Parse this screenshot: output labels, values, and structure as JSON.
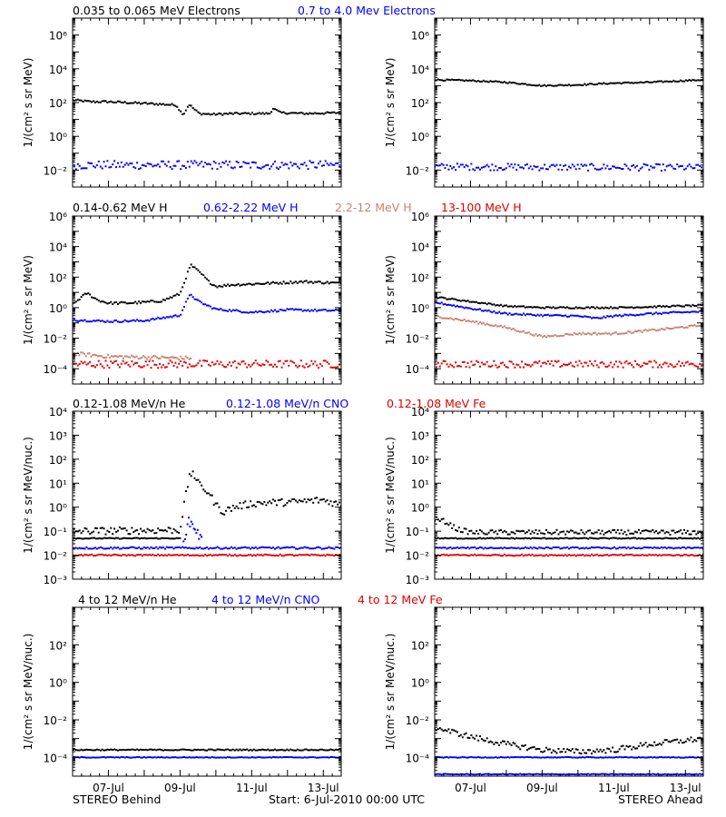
{
  "footer": {
    "left": "STEREO Behind",
    "center": "Start:  6-Jul-2010 00:00 UTC",
    "right": "STEREO Ahead"
  },
  "x_axis": {
    "unit": "day of July 2010",
    "range": [
      6,
      13.5
    ],
    "ticks": [
      7,
      9,
      11,
      13
    ],
    "tick_labels": [
      "07-Jul",
      "09-Jul",
      "11-Jul",
      "13-Jul"
    ]
  },
  "rows": [
    {
      "id": "electrons",
      "titles": [
        {
          "text": "0.035 to 0.065 MeV Electrons",
          "color": "#000000"
        },
        {
          "text": "0.7 to 4.0 Mev Electrons",
          "color": "#0000ff"
        }
      ],
      "ylabel": "1/(cm² s sr MeV)"
    },
    {
      "id": "protons",
      "titles": [
        {
          "text": "0.14-0.62 MeV H",
          "color": "#000000"
        },
        {
          "text": "0.62-2.22 MeV H",
          "color": "#0000ff"
        },
        {
          "text": "2.2-12 MeV H",
          "color": "#c8826e"
        },
        {
          "text": "13-100 MeV H",
          "color": "#e00000"
        }
      ],
      "ylabel": "1/(cm² s sr MeV)"
    },
    {
      "id": "heavy-low",
      "titles": [
        {
          "text": "0.12-1.08 MeV/n He",
          "color": "#000000"
        },
        {
          "text": "0.12-1.08 MeV/n CNO",
          "color": "#0000ff"
        },
        {
          "text": "0.12-1.08 MeV Fe",
          "color": "#e00000"
        }
      ],
      "ylabel": "1/(cm² s sr MeV/nuc.)"
    },
    {
      "id": "heavy-high",
      "titles": [
        {
          "text": "4 to 12 MeV/n He",
          "color": "#000000"
        },
        {
          "text": "4 to 12 MeV/n CNO",
          "color": "#0000ff"
        },
        {
          "text": "4 to 12 MeV Fe",
          "color": "#e00000"
        }
      ],
      "ylabel": "1/(cm² s sr MeV/nuc.)"
    }
  ],
  "chart_data": [
    {
      "type": "scatter",
      "panel": "STEREO Behind / electrons",
      "y_scale": "log",
      "ylim_log10": [
        -3,
        7
      ],
      "y_ticks": [
        {
          "v": -2,
          "l": "10⁻²"
        },
        {
          "v": 0,
          "l": "10⁰"
        },
        {
          "v": 2,
          "l": "10²"
        },
        {
          "v": 4,
          "l": "10⁴"
        },
        {
          "v": 6,
          "l": "10⁶"
        }
      ],
      "series": [
        {
          "color": "#000000",
          "points": [
            [
              6,
              2.15
            ],
            [
              6.5,
              2.05
            ],
            [
              7,
              2.05
            ],
            [
              7.5,
              2.0
            ],
            [
              8,
              1.95
            ],
            [
              8.5,
              1.9
            ],
            [
              8.9,
              1.85
            ],
            [
              9,
              1.5
            ],
            [
              9.1,
              1.3
            ],
            [
              9.2,
              1.7
            ],
            [
              9.25,
              1.9
            ],
            [
              9.35,
              1.7
            ],
            [
              9.45,
              1.5
            ],
            [
              9.55,
              1.35
            ],
            [
              9.9,
              1.3
            ],
            [
              10.5,
              1.35
            ],
            [
              11,
              1.35
            ],
            [
              11.5,
              1.35
            ],
            [
              11.6,
              1.65
            ],
            [
              11.8,
              1.4
            ],
            [
              12.5,
              1.35
            ],
            [
              13.5,
              1.4
            ]
          ],
          "spread": 0.06
        },
        {
          "color": "#0000ff",
          "points": [
            [
              6,
              -1.7
            ],
            [
              13.5,
              -1.7
            ]
          ],
          "spread": 0.25
        }
      ]
    },
    {
      "type": "scatter",
      "panel": "STEREO Ahead / electrons",
      "y_scale": "log",
      "ylim_log10": [
        -3,
        7
      ],
      "y_ticks": [
        {
          "v": -2,
          "l": "10⁻²"
        },
        {
          "v": 0,
          "l": "10⁰"
        },
        {
          "v": 2,
          "l": "10²"
        },
        {
          "v": 4,
          "l": "10⁴"
        },
        {
          "v": 6,
          "l": "10⁶"
        }
      ],
      "series": [
        {
          "color": "#000000",
          "points": [
            [
              6,
              3.35
            ],
            [
              7,
              3.3
            ],
            [
              8,
              3.2
            ],
            [
              9,
              3.0
            ],
            [
              10,
              3.05
            ],
            [
              11,
              3.15
            ],
            [
              12,
              3.2
            ],
            [
              13.5,
              3.35
            ]
          ],
          "spread": 0.04
        },
        {
          "color": "#0000ff",
          "points": [
            [
              6,
              -1.8
            ],
            [
              13.5,
              -1.85
            ]
          ],
          "spread": 0.2
        }
      ]
    },
    {
      "type": "scatter",
      "panel": "STEREO Behind / protons",
      "y_scale": "log",
      "ylim_log10": [
        -5,
        6
      ],
      "y_ticks": [
        {
          "v": -4,
          "l": "10⁻⁴"
        },
        {
          "v": -2,
          "l": "10⁻²"
        },
        {
          "v": 0,
          "l": "10⁰"
        },
        {
          "v": 2,
          "l": "10²"
        },
        {
          "v": 4,
          "l": "10⁴"
        },
        {
          "v": 6,
          "l": "10⁶"
        }
      ],
      "series": [
        {
          "color": "#000000",
          "points": [
            [
              6,
              0.2
            ],
            [
              6.2,
              0.6
            ],
            [
              6.4,
              0.95
            ],
            [
              6.7,
              0.5
            ],
            [
              7,
              0.3
            ],
            [
              7.5,
              0.3
            ],
            [
              8,
              0.35
            ],
            [
              8.5,
              0.45
            ],
            [
              9,
              0.9
            ],
            [
              9.2,
              2.2
            ],
            [
              9.3,
              2.8
            ],
            [
              9.4,
              2.6
            ],
            [
              9.5,
              2.4
            ],
            [
              9.6,
              2.2
            ],
            [
              9.8,
              1.7
            ],
            [
              10,
              1.4
            ],
            [
              10.5,
              1.5
            ],
            [
              11,
              1.55
            ],
            [
              11.5,
              1.6
            ],
            [
              12,
              1.65
            ],
            [
              12.5,
              1.7
            ],
            [
              13.5,
              1.6
            ]
          ],
          "spread": 0.08
        },
        {
          "color": "#0000ff",
          "points": [
            [
              6,
              -0.8
            ],
            [
              7,
              -0.9
            ],
            [
              8,
              -0.85
            ],
            [
              9,
              -0.5
            ],
            [
              9.2,
              0.5
            ],
            [
              9.3,
              0.9
            ],
            [
              9.45,
              0.5
            ],
            [
              9.7,
              0.2
            ],
            [
              10,
              -0.1
            ],
            [
              11,
              -0.3
            ],
            [
              12,
              -0.15
            ],
            [
              13.5,
              -0.2
            ]
          ],
          "spread": 0.07
        },
        {
          "color": "#c8826e",
          "points": [
            [
              6,
              -3.0
            ],
            [
              7,
              -3.2
            ],
            [
              9,
              -3.3
            ],
            [
              9.3,
              -3.3
            ]
          ],
          "spread": 0.12
        },
        {
          "color": "#e00000",
          "points": [
            [
              6,
              -3.7
            ],
            [
              13.5,
              -3.7
            ]
          ],
          "spread": 0.25
        }
      ]
    },
    {
      "type": "scatter",
      "panel": "STEREO Ahead / protons",
      "y_scale": "log",
      "ylim_log10": [
        -5,
        6
      ],
      "y_ticks": [
        {
          "v": -4,
          "l": "10⁻⁴"
        },
        {
          "v": -2,
          "l": "10⁻²"
        },
        {
          "v": 0,
          "l": "10⁰"
        },
        {
          "v": 2,
          "l": "10²"
        },
        {
          "v": 4,
          "l": "10⁴"
        },
        {
          "v": 6,
          "l": "10⁶"
        }
      ],
      "series": [
        {
          "color": "#000000",
          "points": [
            [
              6,
              0.7
            ],
            [
              7,
              0.4
            ],
            [
              8,
              0.1
            ],
            [
              9,
              0.0
            ],
            [
              10,
              0.0
            ],
            [
              11,
              0.0
            ],
            [
              12,
              0.05
            ],
            [
              13.5,
              0.15
            ]
          ],
          "spread": 0.05
        },
        {
          "color": "#0000ff",
          "points": [
            [
              6,
              0.35
            ],
            [
              7,
              -0.05
            ],
            [
              8,
              -0.4
            ],
            [
              9,
              -0.5
            ],
            [
              10,
              -0.55
            ],
            [
              10.5,
              -0.7
            ],
            [
              11,
              -0.55
            ],
            [
              12,
              -0.4
            ],
            [
              13.5,
              -0.25
            ]
          ],
          "spread": 0.06
        },
        {
          "color": "#c8826e",
          "points": [
            [
              6,
              -0.55
            ],
            [
              7,
              -0.9
            ],
            [
              8,
              -1.3
            ],
            [
              8.5,
              -1.6
            ],
            [
              9,
              -1.9
            ],
            [
              10,
              -1.7
            ],
            [
              11,
              -1.7
            ],
            [
              12,
              -1.5
            ],
            [
              13.5,
              -1.15
            ]
          ],
          "spread": 0.07
        },
        {
          "color": "#e00000",
          "points": [
            [
              6,
              -3.7
            ],
            [
              13.5,
              -3.7
            ]
          ],
          "spread": 0.22
        }
      ]
    },
    {
      "type": "scatter",
      "panel": "STEREO Behind / heavy ions 0.12-1.08",
      "y_scale": "log",
      "ylim_log10": [
        -3,
        4
      ],
      "y_ticks": [
        {
          "v": -3,
          "l": "10⁻³"
        },
        {
          "v": -2,
          "l": "10⁻²"
        },
        {
          "v": -1,
          "l": "10⁻¹"
        },
        {
          "v": 0,
          "l": "10⁰"
        },
        {
          "v": 1,
          "l": "10¹"
        },
        {
          "v": 2,
          "l": "10²"
        },
        {
          "v": 3,
          "l": "10³"
        },
        {
          "v": 4,
          "l": "10⁴"
        }
      ],
      "series": [
        {
          "color": "#000000",
          "points": [
            [
              6,
              -1.3
            ],
            [
              9,
              -1.3
            ]
          ],
          "spread": 0.02
        },
        {
          "color": "#000000",
          "points": [
            [
              6,
              -1.0
            ],
            [
              9,
              -0.95
            ],
            [
              9.1,
              0.0
            ],
            [
              9.25,
              1.2
            ],
            [
              9.35,
              1.5
            ],
            [
              9.5,
              1.0
            ],
            [
              9.8,
              0.6
            ],
            [
              10,
              0.1
            ],
            [
              10.2,
              -0.2
            ],
            [
              10.5,
              0.0
            ],
            [
              11,
              0.15
            ],
            [
              11.5,
              0.2
            ],
            [
              12,
              0.2
            ],
            [
              13,
              0.3
            ],
            [
              13.5,
              0.1
            ]
          ],
          "spread": 0.15
        },
        {
          "color": "#0000ff",
          "points": [
            [
              6,
              -1.7
            ],
            [
              13.5,
              -1.7
            ]
          ],
          "spread": 0.04
        },
        {
          "color": "#0000ff",
          "points": [
            [
              9.1,
              -1.3
            ],
            [
              9.25,
              -0.6
            ],
            [
              9.4,
              -0.8
            ],
            [
              9.6,
              -1.4
            ]
          ],
          "spread": 0.2
        },
        {
          "color": "#e00000",
          "points": [
            [
              6,
              -2.0
            ],
            [
              13.5,
              -2.0
            ]
          ],
          "spread": 0.03
        }
      ]
    },
    {
      "type": "scatter",
      "panel": "STEREO Ahead / heavy ions 0.12-1.08",
      "y_scale": "log",
      "ylim_log10": [
        -3,
        4
      ],
      "y_ticks": [
        {
          "v": -3,
          "l": "10⁻³"
        },
        {
          "v": -2,
          "l": "10⁻²"
        },
        {
          "v": -1,
          "l": "10⁻¹"
        },
        {
          "v": 0,
          "l": "10⁰"
        },
        {
          "v": 1,
          "l": "10¹"
        },
        {
          "v": 2,
          "l": "10²"
        },
        {
          "v": 3,
          "l": "10³"
        },
        {
          "v": 4,
          "l": "10⁴"
        }
      ],
      "series": [
        {
          "color": "#000000",
          "points": [
            [
              6,
              -0.5
            ],
            [
              6.3,
              -0.6
            ],
            [
              6.6,
              -0.9
            ],
            [
              7,
              -1.05
            ],
            [
              13.5,
              -1.05
            ]
          ],
          "spread": 0.1
        },
        {
          "color": "#000000",
          "points": [
            [
              6,
              -1.3
            ],
            [
              13.5,
              -1.3
            ]
          ],
          "spread": 0.02
        },
        {
          "color": "#0000ff",
          "points": [
            [
              6,
              -1.7
            ],
            [
              13.5,
              -1.7
            ]
          ],
          "spread": 0.03
        },
        {
          "color": "#e00000",
          "points": [
            [
              6,
              -2.0
            ],
            [
              13.5,
              -2.0
            ]
          ],
          "spread": 0.03
        }
      ]
    },
    {
      "type": "scatter",
      "panel": "STEREO Behind / heavy ions 4-12",
      "y_scale": "log",
      "ylim_log10": [
        -5,
        4
      ],
      "y_ticks": [
        {
          "v": -4,
          "l": "10⁻⁴"
        },
        {
          "v": -2,
          "l": "10⁻²"
        },
        {
          "v": 0,
          "l": "10⁰"
        },
        {
          "v": 2,
          "l": "10²"
        }
      ],
      "series": [
        {
          "color": "#000000",
          "points": [
            [
              6,
              -3.6
            ],
            [
              13.5,
              -3.6
            ]
          ],
          "spread": 0.03
        },
        {
          "color": "#0000ff",
          "points": [
            [
              6,
              -4.0
            ],
            [
              13.5,
              -4.0
            ]
          ],
          "spread": 0.02
        }
      ]
    },
    {
      "type": "scatter",
      "panel": "STEREO Ahead / heavy ions 4-12",
      "y_scale": "log",
      "ylim_log10": [
        -5,
        4
      ],
      "y_ticks": [
        {
          "v": -4,
          "l": "10⁻⁴"
        },
        {
          "v": -2,
          "l": "10⁻²"
        },
        {
          "v": 0,
          "l": "10⁰"
        },
        {
          "v": 2,
          "l": "10²"
        }
      ],
      "series": [
        {
          "color": "#000000",
          "points": [
            [
              6,
              -2.4
            ],
            [
              7,
              -2.9
            ],
            [
              8,
              -3.3
            ],
            [
              9,
              -3.6
            ],
            [
              10,
              -3.7
            ],
            [
              11,
              -3.6
            ],
            [
              12,
              -3.3
            ],
            [
              13.5,
              -3.0
            ]
          ],
          "spread": 0.15
        },
        {
          "color": "#0000ff",
          "points": [
            [
              6,
              -4.0
            ],
            [
              13.5,
              -4.0
            ]
          ],
          "spread": 0.02
        },
        {
          "color": "#0000ff",
          "points": [
            [
              6,
              -4.9
            ],
            [
              13.5,
              -4.9
            ]
          ],
          "spread": 0.02
        }
      ]
    }
  ]
}
